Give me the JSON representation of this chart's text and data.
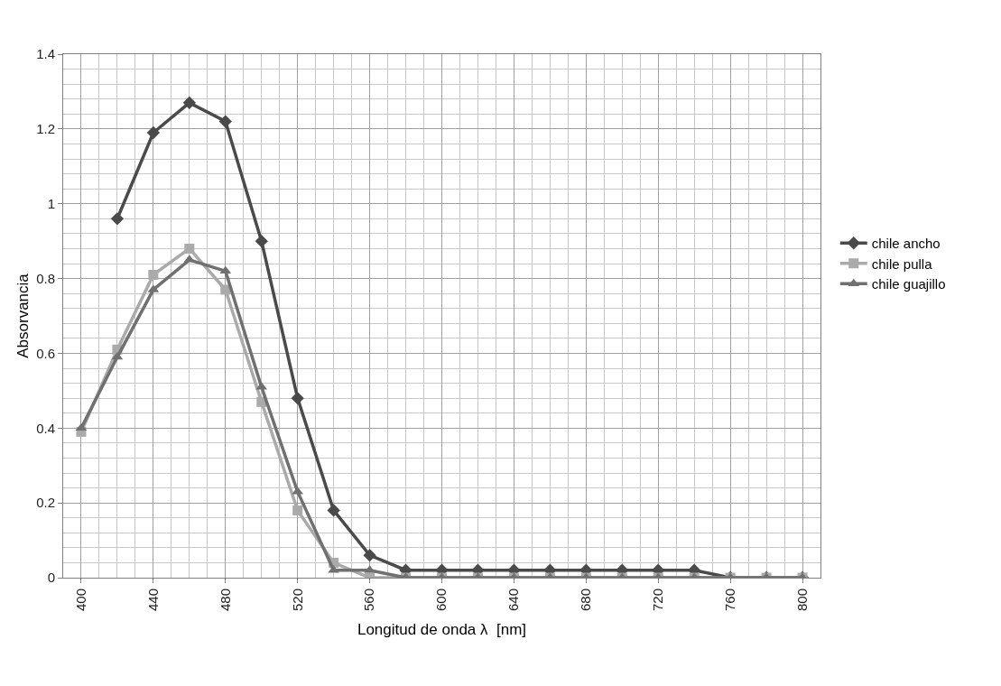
{
  "chart_data": {
    "type": "line",
    "xlabel": "Longitud de onda λ  [nm]",
    "ylabel": "Absorvancia",
    "x": [
      400,
      420,
      440,
      460,
      480,
      500,
      520,
      540,
      560,
      580,
      600,
      620,
      640,
      660,
      680,
      700,
      720,
      740,
      760,
      780,
      800
    ],
    "series": [
      {
        "name": "chile ancho",
        "color": "#4a4a4a",
        "marker": "diamond",
        "values": [
          null,
          0.96,
          1.19,
          1.27,
          1.22,
          0.9,
          0.48,
          0.18,
          0.06,
          0.02,
          0.02,
          0.02,
          0.02,
          0.02,
          0.02,
          0.02,
          0.02,
          0.02,
          0.0,
          0.0,
          0.0
        ]
      },
      {
        "name": "chile pulla",
        "color": "#aaaaaa",
        "marker": "square",
        "values": [
          0.39,
          0.61,
          0.81,
          0.88,
          0.77,
          0.47,
          0.18,
          0.04,
          0.0,
          0.0,
          0.0,
          0.0,
          0.0,
          0.0,
          0.0,
          0.0,
          0.0,
          0.0,
          0.0,
          0.0,
          0.0
        ]
      },
      {
        "name": "chile guajillo",
        "color": "#707070",
        "marker": "triangle",
        "values": [
          0.4,
          0.59,
          0.77,
          0.85,
          0.82,
          0.51,
          0.23,
          0.02,
          0.02,
          0.0,
          0.0,
          0.0,
          0.0,
          0.0,
          0.0,
          0.0,
          0.0,
          0.0,
          0.0,
          0.0,
          0.0
        ]
      }
    ],
    "xlim": [
      390,
      810
    ],
    "xticks": [
      400,
      440,
      480,
      520,
      560,
      600,
      640,
      680,
      720,
      760,
      800
    ],
    "ylim": [
      0,
      1.4
    ],
    "yticks": [
      {
        "value": 0,
        "label": "0"
      },
      0.2,
      0.4,
      0.6,
      0.8,
      {
        "value": 1,
        "label": "1"
      },
      1.2,
      1.4
    ],
    "grid": true,
    "legend": "right",
    "line_style": "solid"
  }
}
